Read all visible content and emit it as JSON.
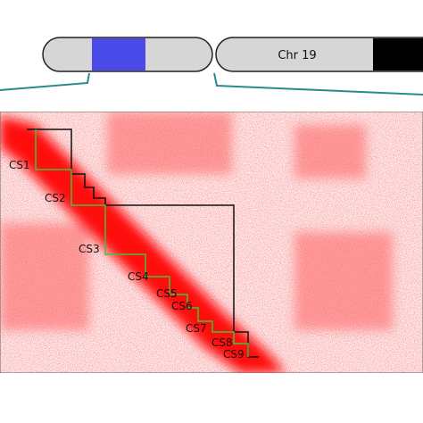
{
  "chromosome_label": "Chr 19",
  "domains": [
    "CS1",
    "CS2",
    "CS3",
    "CS4",
    "CS5",
    "CS6",
    "CS7",
    "CS8",
    "CS9"
  ]
}
